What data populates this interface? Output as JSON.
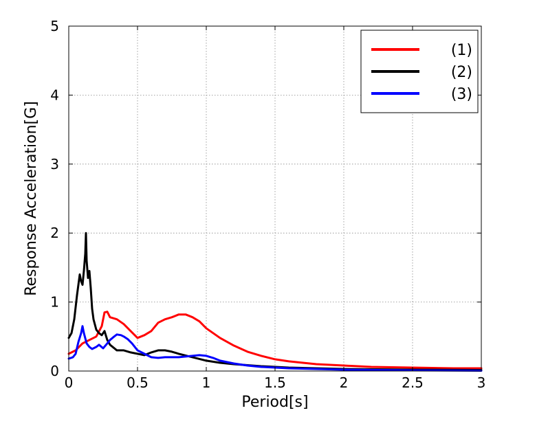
{
  "chart_data": {
    "type": "line",
    "title": "",
    "xlabel": "Period[s]",
    "ylabel": "Response Acceleration[G]",
    "xlim": [
      0,
      3
    ],
    "ylim": [
      0,
      5
    ],
    "xticks": [
      "0",
      "0.5",
      "1",
      "1.5",
      "2",
      "2.5",
      "3"
    ],
    "yticks": [
      "0",
      "1",
      "2",
      "3",
      "4",
      "5"
    ],
    "grid": true,
    "legend_position": "top-right",
    "series": [
      {
        "name": "(1)",
        "color": "#ff0000",
        "points": [
          [
            0,
            0.25
          ],
          [
            0.05,
            0.3
          ],
          [
            0.1,
            0.4
          ],
          [
            0.15,
            0.45
          ],
          [
            0.2,
            0.5
          ],
          [
            0.24,
            0.65
          ],
          [
            0.26,
            0.85
          ],
          [
            0.28,
            0.86
          ],
          [
            0.3,
            0.78
          ],
          [
            0.35,
            0.75
          ],
          [
            0.4,
            0.68
          ],
          [
            0.45,
            0.58
          ],
          [
            0.5,
            0.48
          ],
          [
            0.55,
            0.52
          ],
          [
            0.6,
            0.58
          ],
          [
            0.65,
            0.7
          ],
          [
            0.7,
            0.75
          ],
          [
            0.75,
            0.78
          ],
          [
            0.8,
            0.82
          ],
          [
            0.85,
            0.82
          ],
          [
            0.9,
            0.78
          ],
          [
            0.95,
            0.72
          ],
          [
            1.0,
            0.62
          ],
          [
            1.1,
            0.48
          ],
          [
            1.2,
            0.37
          ],
          [
            1.3,
            0.28
          ],
          [
            1.4,
            0.22
          ],
          [
            1.5,
            0.17
          ],
          [
            1.6,
            0.14
          ],
          [
            1.8,
            0.1
          ],
          [
            2.0,
            0.08
          ],
          [
            2.2,
            0.06
          ],
          [
            2.5,
            0.05
          ],
          [
            2.8,
            0.04
          ],
          [
            3.0,
            0.04
          ]
        ]
      },
      {
        "name": "(2)",
        "color": "#000000",
        "points": [
          [
            0,
            0.48
          ],
          [
            0.02,
            0.55
          ],
          [
            0.04,
            0.75
          ],
          [
            0.06,
            1.1
          ],
          [
            0.08,
            1.4
          ],
          [
            0.09,
            1.3
          ],
          [
            0.1,
            1.25
          ],
          [
            0.11,
            1.45
          ],
          [
            0.12,
            1.7
          ],
          [
            0.125,
            2.0
          ],
          [
            0.13,
            1.6
          ],
          [
            0.14,
            1.35
          ],
          [
            0.15,
            1.45
          ],
          [
            0.16,
            1.2
          ],
          [
            0.17,
            0.9
          ],
          [
            0.18,
            0.75
          ],
          [
            0.2,
            0.6
          ],
          [
            0.22,
            0.55
          ],
          [
            0.24,
            0.52
          ],
          [
            0.26,
            0.58
          ],
          [
            0.28,
            0.45
          ],
          [
            0.3,
            0.38
          ],
          [
            0.35,
            0.3
          ],
          [
            0.4,
            0.3
          ],
          [
            0.45,
            0.27
          ],
          [
            0.5,
            0.25
          ],
          [
            0.55,
            0.23
          ],
          [
            0.6,
            0.27
          ],
          [
            0.65,
            0.3
          ],
          [
            0.7,
            0.3
          ],
          [
            0.75,
            0.28
          ],
          [
            0.8,
            0.25
          ],
          [
            0.9,
            0.2
          ],
          [
            1.0,
            0.15
          ],
          [
            1.1,
            0.12
          ],
          [
            1.2,
            0.1
          ],
          [
            1.4,
            0.07
          ],
          [
            1.6,
            0.05
          ],
          [
            2.0,
            0.03
          ],
          [
            2.5,
            0.02
          ],
          [
            3.0,
            0.015
          ]
        ]
      },
      {
        "name": "(3)",
        "color": "#0000ff",
        "points": [
          [
            0,
            0.18
          ],
          [
            0.03,
            0.2
          ],
          [
            0.05,
            0.25
          ],
          [
            0.07,
            0.42
          ],
          [
            0.09,
            0.55
          ],
          [
            0.1,
            0.65
          ],
          [
            0.11,
            0.55
          ],
          [
            0.13,
            0.4
          ],
          [
            0.15,
            0.35
          ],
          [
            0.17,
            0.32
          ],
          [
            0.2,
            0.35
          ],
          [
            0.22,
            0.38
          ],
          [
            0.25,
            0.33
          ],
          [
            0.28,
            0.4
          ],
          [
            0.3,
            0.45
          ],
          [
            0.33,
            0.5
          ],
          [
            0.35,
            0.53
          ],
          [
            0.38,
            0.52
          ],
          [
            0.4,
            0.5
          ],
          [
            0.43,
            0.46
          ],
          [
            0.46,
            0.4
          ],
          [
            0.5,
            0.3
          ],
          [
            0.55,
            0.25
          ],
          [
            0.6,
            0.2
          ],
          [
            0.65,
            0.19
          ],
          [
            0.7,
            0.2
          ],
          [
            0.75,
            0.2
          ],
          [
            0.8,
            0.2
          ],
          [
            0.85,
            0.21
          ],
          [
            0.9,
            0.22
          ],
          [
            0.95,
            0.23
          ],
          [
            1.0,
            0.22
          ],
          [
            1.05,
            0.19
          ],
          [
            1.1,
            0.15
          ],
          [
            1.2,
            0.11
          ],
          [
            1.3,
            0.08
          ],
          [
            1.4,
            0.06
          ],
          [
            1.6,
            0.04
          ],
          [
            2.0,
            0.02
          ],
          [
            2.5,
            0.01
          ],
          [
            3.0,
            0.005
          ]
        ]
      }
    ]
  }
}
